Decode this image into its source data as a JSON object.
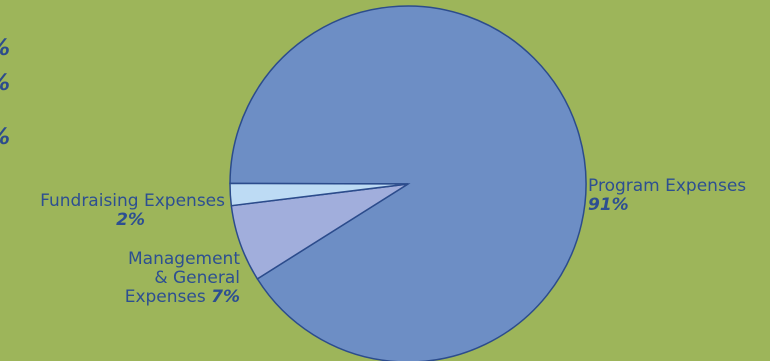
{
  "page": {
    "background": "#9db55a"
  },
  "left_fragments": [
    "%",
    "%",
    "%"
  ],
  "chart_data": {
    "type": "pie",
    "title": "",
    "slices": [
      {
        "label": "Program Expenses",
        "value": 91,
        "display": "91%",
        "color": "#6d8ec5"
      },
      {
        "label": "Management & General Expenses",
        "label_lines": [
          "Management",
          "& General",
          "Expenses"
        ],
        "value": 7,
        "display": "7%",
        "color": "#a1aedc"
      },
      {
        "label": "Fundraising Expenses",
        "value": 2,
        "display": "2%",
        "color": "#bddbf4"
      }
    ],
    "edge_color": "#2c4c8c"
  }
}
